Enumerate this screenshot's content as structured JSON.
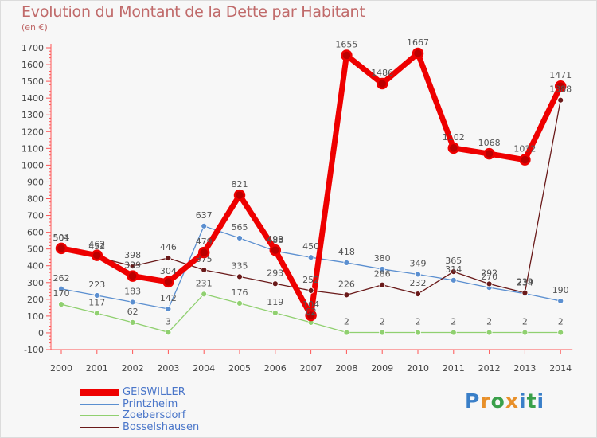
{
  "title": "Evolution du Montant de la Dette par Habitant",
  "unit": "(en €)",
  "logo": {
    "text": "Proxiti",
    "colors": [
      "#3a7fc8",
      "#e8902a",
      "#3aa04a",
      "#e8902a",
      "#3a7fc8",
      "#3aa04a",
      "#3a7fc8"
    ]
  },
  "chart_data": {
    "type": "line",
    "title": "Evolution du Montant de la Dette par Habitant",
    "ylabel": "(en €)",
    "categories": [
      "2000",
      "2001",
      "2002",
      "2003",
      "2004",
      "2005",
      "2006",
      "2007",
      "2008",
      "2009",
      "2010",
      "2011",
      "2012",
      "2013",
      "2014"
    ],
    "ylim": [
      -100,
      1700
    ],
    "yticks": [
      -100,
      0,
      100,
      200,
      300,
      400,
      500,
      600,
      700,
      800,
      900,
      1000,
      1100,
      1200,
      1300,
      1400,
      1500,
      1600,
      1700
    ],
    "grid": false,
    "legend_position": "bottom-left",
    "series": [
      {
        "name": "GEISWILLER",
        "color": "#ee0000",
        "width": 7,
        "values": [
          504,
          462,
          339,
          304,
          479,
          821,
          493,
          104,
          1655,
          1486,
          1667,
          1102,
          1068,
          1032,
          1471
        ]
      },
      {
        "name": "Printzheim",
        "color": "#5b8fd0",
        "width": 1.3,
        "values": [
          262,
          223,
          183,
          142,
          637,
          565,
          488,
          450,
          418,
          380,
          349,
          314,
          270,
          234,
          190
        ]
      },
      {
        "name": "Zoebersdorf",
        "color": "#90d070",
        "width": 1.3,
        "values": [
          170,
          117,
          62,
          3,
          231,
          176,
          119,
          62,
          2,
          2,
          2,
          2,
          2,
          2,
          2
        ]
      },
      {
        "name": "Bosselshausen",
        "color": "#6a1a1a",
        "width": 1.3,
        "values": [
          501,
          452,
          398,
          446,
          375,
          335,
          293,
          252,
          226,
          286,
          232,
          365,
          292,
          239,
          1388
        ]
      }
    ]
  }
}
